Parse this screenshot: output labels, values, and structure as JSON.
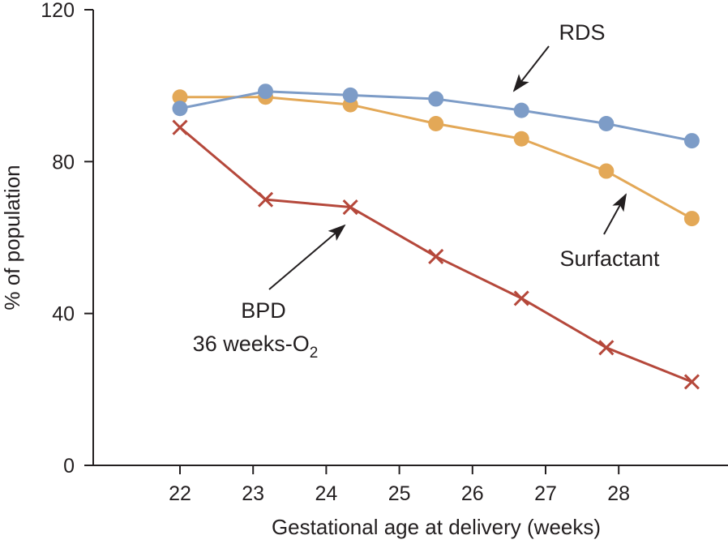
{
  "chart_data": {
    "type": "line",
    "title": "",
    "xlabel": "Gestational age at delivery (weeks)",
    "ylabel": "% of population",
    "xlim": [
      20.9,
      29.5
    ],
    "ylim": [
      0,
      120
    ],
    "x_ticks": [
      22,
      23,
      24,
      25,
      26,
      27,
      28
    ],
    "y_ticks": [
      0,
      40,
      80,
      120
    ],
    "grid": false,
    "legend": "none (direct annotations with arrows)",
    "x": [
      22,
      23.17,
      24.33,
      25.5,
      26.67,
      27.83,
      29
    ],
    "series": [
      {
        "name": "RDS",
        "marker": "circle",
        "color": "#7d9cc7",
        "values": [
          94,
          98.5,
          97.5,
          96.5,
          93.5,
          90,
          85.5
        ]
      },
      {
        "name": "Surfactant",
        "marker": "circle",
        "color": "#e3a857",
        "values": [
          97,
          97,
          95,
          90,
          86,
          77.5,
          65
        ]
      },
      {
        "name": "BPD 36 weeks-O2",
        "marker": "x",
        "color": "#b5483b",
        "values": [
          89,
          70,
          68,
          55,
          44,
          31,
          22
        ]
      }
    ],
    "annotations": [
      {
        "id": "rds",
        "text": "RDS",
        "series": "RDS"
      },
      {
        "id": "surfactant",
        "text": "Surfactant",
        "series": "Surfactant"
      },
      {
        "id": "bpd",
        "line1": "BPD",
        "line2_main": "36 weeks-O",
        "line2_sub": "2",
        "series": "BPD 36 weeks-O2"
      }
    ]
  }
}
